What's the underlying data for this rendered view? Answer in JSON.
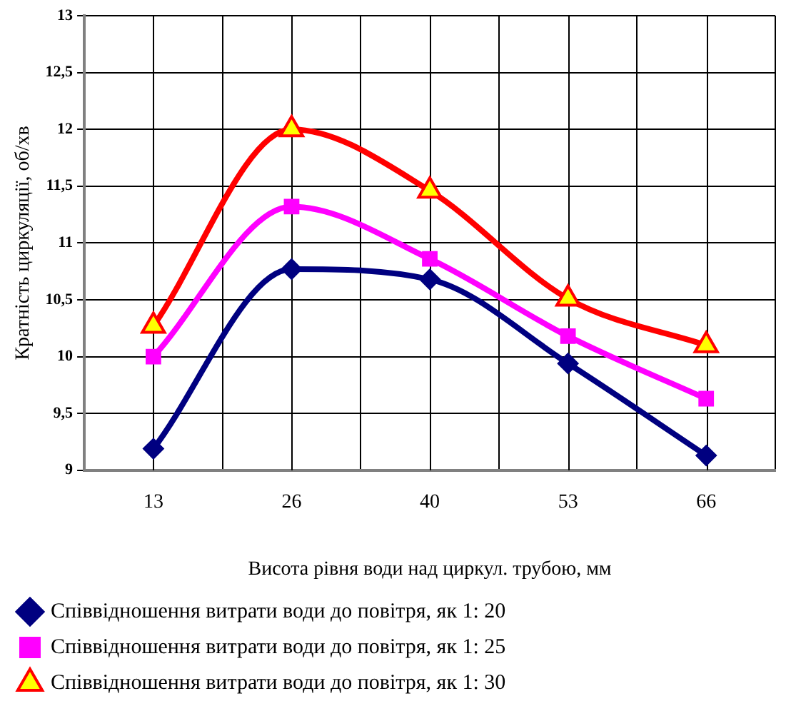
{
  "chart_data": {
    "type": "line",
    "xlabel": "Висота рівня води над циркул. трубою, мм",
    "ylabel": "Кратність циркуляції, об/хв",
    "categories": [
      "13",
      "26",
      "40",
      "53",
      "66"
    ],
    "series": [
      {
        "name": "Співвідношення витрати води до повітря, як 1: 20",
        "color": "#000080",
        "marker": "diamond",
        "values": [
          9.19,
          10.77,
          10.68,
          9.94,
          9.13
        ]
      },
      {
        "name": "Співвідношення витрати води до повітря, як 1: 25",
        "color": "#ff00ff",
        "marker": "square",
        "values": [
          10.0,
          11.32,
          10.86,
          10.18,
          9.63
        ]
      },
      {
        "name": "Співвідношення витрати води до повітря, як 1: 30",
        "color": "#ff0000",
        "marker": "triangle",
        "values": [
          10.27,
          12.0,
          11.46,
          10.51,
          10.1
        ]
      }
    ],
    "ylim": [
      9,
      13
    ],
    "yticks": [
      9,
      {
        "value": 9.5,
        "label": "9,5"
      },
      10,
      {
        "value": 10.5,
        "label": "10,5"
      },
      11,
      {
        "value": 11.5,
        "label": "11,5"
      },
      12,
      {
        "value": 12.5,
        "label": "12,5"
      },
      13
    ],
    "grid": true,
    "legend": "bottom",
    "line_style": "solid"
  }
}
